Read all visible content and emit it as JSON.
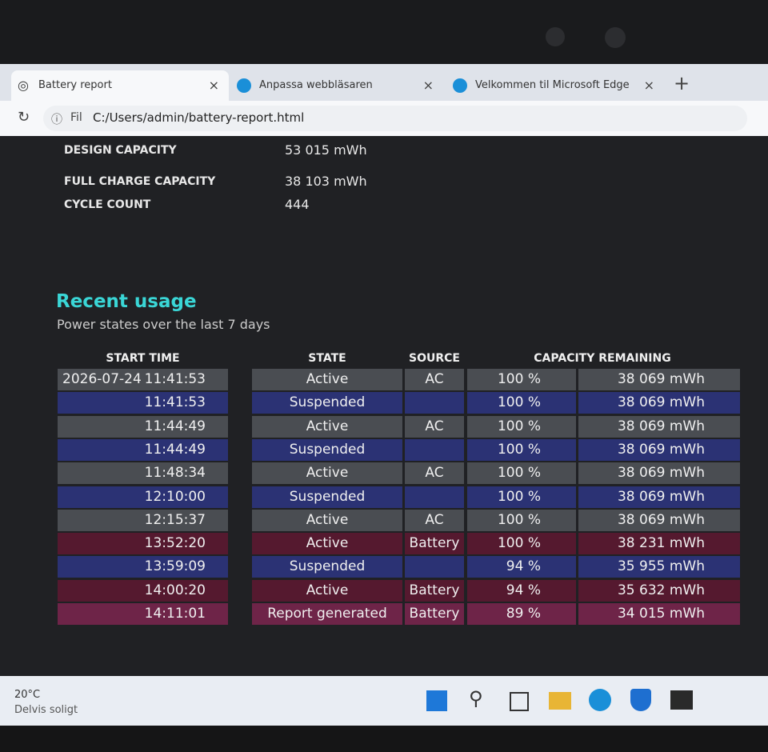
{
  "browser": {
    "tabs": [
      "Battery report",
      "Anpassa webbläsaren",
      "Velkommen til Microsoft Edge"
    ],
    "address_label": "Fil",
    "address": "C:/Users/admin/battery-report.html"
  },
  "battery_info": [
    {
      "label": "DESIGN CAPACITY",
      "value": "53 015 mWh"
    },
    {
      "label": "FULL CHARGE CAPACITY",
      "value": "38 103 mWh"
    },
    {
      "label": "CYCLE COUNT",
      "value": "444"
    }
  ],
  "recent_usage": {
    "title": "Recent usage",
    "subtitle": "Power states over the last 7 days",
    "headers": [
      "START TIME",
      "STATE",
      "SOURCE",
      "CAPACITY REMAINING"
    ],
    "rows": [
      {
        "date": "2026-07-24",
        "time": "11:41:53",
        "state": "Active",
        "source": "AC",
        "percent": "100 %",
        "energy": "38 069 mWh"
      },
      {
        "time": "11:41:53",
        "state": "Suspended",
        "source": null,
        "percent": "100 %",
        "energy": "38 069 mWh"
      },
      {
        "time": "11:44:49",
        "state": "Active",
        "source": "AC",
        "percent": "100 %",
        "energy": "38 069 mWh"
      },
      {
        "time": "11:44:49",
        "state": "Suspended",
        "source": null,
        "percent": "100 %",
        "energy": "38 069 mWh"
      },
      {
        "time": "11:48:34",
        "state": "Active",
        "source": "AC",
        "percent": "100 %",
        "energy": "38 069 mWh"
      },
      {
        "time": "12:10:00",
        "state": "Suspended",
        "source": null,
        "percent": "100 %",
        "energy": "38 069 mWh"
      },
      {
        "time": "12:15:37",
        "state": "Active",
        "source": "AC",
        "percent": "100 %",
        "energy": "38 069 mWh"
      },
      {
        "time": "13:52:20",
        "state": "Active",
        "source": "Battery",
        "percent": "100 %",
        "energy": "38 231 mWh"
      },
      {
        "time": "13:59:09",
        "state": "Suspended",
        "source": null,
        "percent": "94 %",
        "energy": "35 955 mWh"
      },
      {
        "time": "14:00:20",
        "state": "Active",
        "source": "Battery",
        "percent": "94 %",
        "energy": "35 632 mWh"
      },
      {
        "time": "14:11:01",
        "state": "Report generated",
        "source": "Battery",
        "percent": "89 %",
        "energy": "34 015 mWh"
      }
    ]
  },
  "taskbar": {
    "temperature": "20°C",
    "weather": "Delvis soligt"
  }
}
